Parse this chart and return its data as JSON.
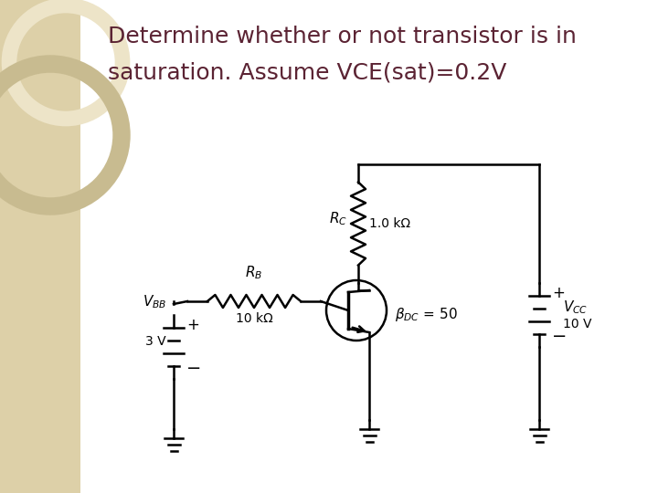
{
  "title_line1": "Determine whether or not transistor is in",
  "title_line2": "saturation. Assume VCE(sat)=0.2V",
  "title_color": "#5B2333",
  "title_fontsize": 18,
  "bg_color": "#FFFFFF",
  "left_panel_color": "#DDD0A8",
  "circuit": {
    "VBB_label": "$V_{BB}$",
    "VBB_value": "3 V",
    "RB_label": "$R_B$",
    "RB_value": "10 kΩ",
    "RC_label": "$R_C$",
    "RC_value": "1.0 kΩ",
    "VCC_label": "$V_{CC}$",
    "VCC_value": "10 V",
    "beta_label": "$\\beta_{DC}$ = 50"
  }
}
